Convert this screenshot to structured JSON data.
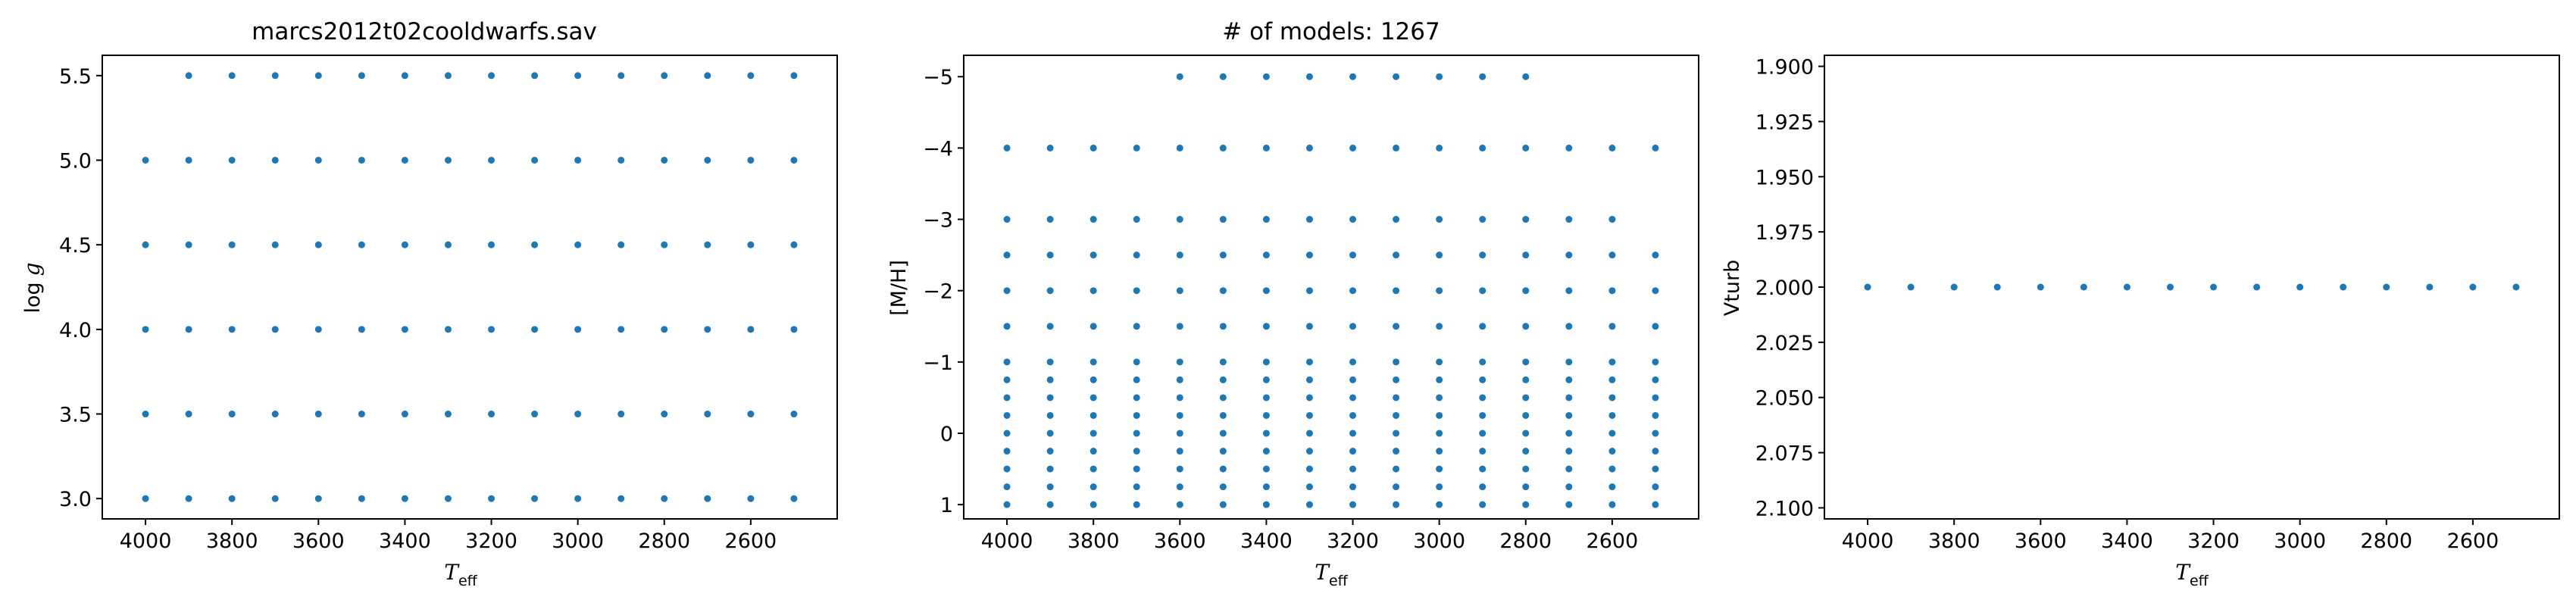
{
  "chart_data": [
    {
      "type": "scatter",
      "title": "marcs2012t02cooldwarfs.sav",
      "xlabel": {
        "main": "T",
        "sub": "eff"
      },
      "ylabel": {
        "main": "log",
        "var": "g"
      },
      "xlim": [
        4100,
        2400
      ],
      "ylim": [
        5.62,
        2.88
      ],
      "xticks": [
        4000,
        3800,
        3600,
        3400,
        3200,
        3000,
        2800,
        2600
      ],
      "yticks": [
        "3.0",
        "3.5",
        "4.0",
        "4.5",
        "5.0",
        "5.5"
      ],
      "color": "#1f77b4",
      "points": [
        [
          4000,
          3.0
        ],
        [
          3900,
          3.0
        ],
        [
          3800,
          3.0
        ],
        [
          3700,
          3.0
        ],
        [
          3600,
          3.0
        ],
        [
          3500,
          3.0
        ],
        [
          3400,
          3.0
        ],
        [
          3300,
          3.0
        ],
        [
          3200,
          3.0
        ],
        [
          3100,
          3.0
        ],
        [
          3000,
          3.0
        ],
        [
          2900,
          3.0
        ],
        [
          2800,
          3.0
        ],
        [
          2700,
          3.0
        ],
        [
          2600,
          3.0
        ],
        [
          2500,
          3.0
        ],
        [
          4000,
          3.5
        ],
        [
          3900,
          3.5
        ],
        [
          3800,
          3.5
        ],
        [
          3700,
          3.5
        ],
        [
          3600,
          3.5
        ],
        [
          3500,
          3.5
        ],
        [
          3400,
          3.5
        ],
        [
          3300,
          3.5
        ],
        [
          3200,
          3.5
        ],
        [
          3100,
          3.5
        ],
        [
          3000,
          3.5
        ],
        [
          2900,
          3.5
        ],
        [
          2800,
          3.5
        ],
        [
          2700,
          3.5
        ],
        [
          2600,
          3.5
        ],
        [
          2500,
          3.5
        ],
        [
          4000,
          4.0
        ],
        [
          3900,
          4.0
        ],
        [
          3800,
          4.0
        ],
        [
          3700,
          4.0
        ],
        [
          3600,
          4.0
        ],
        [
          3500,
          4.0
        ],
        [
          3400,
          4.0
        ],
        [
          3300,
          4.0
        ],
        [
          3200,
          4.0
        ],
        [
          3100,
          4.0
        ],
        [
          3000,
          4.0
        ],
        [
          2900,
          4.0
        ],
        [
          2800,
          4.0
        ],
        [
          2700,
          4.0
        ],
        [
          2600,
          4.0
        ],
        [
          2500,
          4.0
        ],
        [
          4000,
          4.5
        ],
        [
          3900,
          4.5
        ],
        [
          3800,
          4.5
        ],
        [
          3700,
          4.5
        ],
        [
          3600,
          4.5
        ],
        [
          3500,
          4.5
        ],
        [
          3400,
          4.5
        ],
        [
          3300,
          4.5
        ],
        [
          3200,
          4.5
        ],
        [
          3100,
          4.5
        ],
        [
          3000,
          4.5
        ],
        [
          2900,
          4.5
        ],
        [
          2800,
          4.5
        ],
        [
          2700,
          4.5
        ],
        [
          2600,
          4.5
        ],
        [
          2500,
          4.5
        ],
        [
          4000,
          5.0
        ],
        [
          3900,
          5.0
        ],
        [
          3800,
          5.0
        ],
        [
          3700,
          5.0
        ],
        [
          3600,
          5.0
        ],
        [
          3500,
          5.0
        ],
        [
          3400,
          5.0
        ],
        [
          3300,
          5.0
        ],
        [
          3200,
          5.0
        ],
        [
          3100,
          5.0
        ],
        [
          3000,
          5.0
        ],
        [
          2900,
          5.0
        ],
        [
          2800,
          5.0
        ],
        [
          2700,
          5.0
        ],
        [
          2600,
          5.0
        ],
        [
          2500,
          5.0
        ],
        [
          3900,
          5.5
        ],
        [
          3800,
          5.5
        ],
        [
          3700,
          5.5
        ],
        [
          3600,
          5.5
        ],
        [
          3500,
          5.5
        ],
        [
          3400,
          5.5
        ],
        [
          3300,
          5.5
        ],
        [
          3200,
          5.5
        ],
        [
          3100,
          5.5
        ],
        [
          3000,
          5.5
        ],
        [
          2900,
          5.5
        ],
        [
          2800,
          5.5
        ],
        [
          2700,
          5.5
        ],
        [
          2600,
          5.5
        ],
        [
          2500,
          5.5
        ]
      ]
    },
    {
      "type": "scatter",
      "title": "# of models: 1267",
      "xlabel": {
        "main": "T",
        "sub": "eff"
      },
      "ylabel": {
        "main": "[M/H]"
      },
      "xlim": [
        4100,
        2400
      ],
      "ylim": [
        -5.3,
        1.2
      ],
      "xticks": [
        4000,
        3800,
        3600,
        3400,
        3200,
        3000,
        2800,
        2600
      ],
      "yticks": [
        "1",
        "0",
        "−1",
        "−2",
        "−3",
        "−4",
        "−5"
      ],
      "ytick_values": [
        1,
        0,
        -1,
        -2,
        -3,
        -4,
        -5
      ],
      "color": "#1f77b4",
      "teff": [
        4000,
        3900,
        3800,
        3700,
        3600,
        3500,
        3400,
        3300,
        3200,
        3100,
        3000,
        2900,
        2800,
        2700,
        2600,
        2500
      ],
      "mh_full": [
        1.0,
        0.75,
        0.5,
        0.25,
        0.0,
        -0.25,
        -0.5,
        -0.75,
        -1.0,
        -1.5,
        -2.0,
        -2.5
      ],
      "mh_minus3_teff": [
        4000,
        3900,
        3800,
        3700,
        3600,
        3500,
        3400,
        3300,
        3200,
        3100,
        3000,
        2900,
        2800,
        2700,
        2600
      ],
      "mh_minus4_teff": [
        4000,
        3900,
        3800,
        3700,
        3600,
        3500,
        3400,
        3300,
        3200,
        3100,
        3000,
        2900,
        2800,
        2700,
        2600,
        2500
      ],
      "mh_minus5_teff": [
        3600,
        3500,
        3400,
        3300,
        3200,
        3100,
        3000,
        2900,
        2800
      ]
    },
    {
      "type": "scatter",
      "title": "",
      "xlabel": {
        "main": "T",
        "sub": "eff"
      },
      "ylabel": {
        "main": "Vturb"
      },
      "xlim": [
        4100,
        2400
      ],
      "ylim": [
        1.895,
        2.105
      ],
      "xticks": [
        4000,
        3800,
        3600,
        3400,
        3200,
        3000,
        2800,
        2600
      ],
      "yticks": [
        "2.100",
        "2.075",
        "2.050",
        "2.025",
        "2.000",
        "1.975",
        "1.950",
        "1.925",
        "1.900"
      ],
      "ytick_values": [
        2.1,
        2.075,
        2.05,
        2.025,
        2.0,
        1.975,
        1.95,
        1.925,
        1.9
      ],
      "color": "#1f77b4",
      "teff": [
        4000,
        3900,
        3800,
        3700,
        3600,
        3500,
        3400,
        3300,
        3200,
        3100,
        3000,
        2900,
        2800,
        2700,
        2600,
        2500
      ],
      "vturb": 2.0
    }
  ]
}
